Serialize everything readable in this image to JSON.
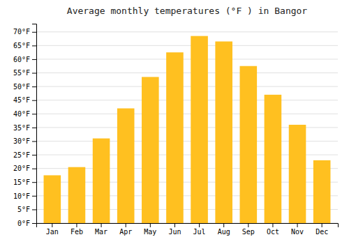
{
  "chart_data": {
    "type": "bar",
    "title": "Average monthly temperatures (°F ) in Bangor",
    "categories": [
      "Jan",
      "Feb",
      "Mar",
      "Apr",
      "May",
      "Jun",
      "Jul",
      "Aug",
      "Sep",
      "Oct",
      "Nov",
      "Dec"
    ],
    "values": [
      17.5,
      20.5,
      31.0,
      42.0,
      53.5,
      62.5,
      68.5,
      66.5,
      57.5,
      47.0,
      36.0,
      23.0
    ],
    "color": "#FFC020",
    "ylim": [
      0,
      73
    ],
    "yticks": [
      {
        "value": 0,
        "label": "0°F"
      },
      {
        "value": 5,
        "label": "5°F"
      },
      {
        "value": 10,
        "label": "10°F"
      },
      {
        "value": 15,
        "label": "15°F"
      },
      {
        "value": 20,
        "label": "20°F"
      },
      {
        "value": 25,
        "label": "25°F"
      },
      {
        "value": 30,
        "label": "30°F"
      },
      {
        "value": 35,
        "label": "35°F"
      },
      {
        "value": 40,
        "label": "40°F"
      },
      {
        "value": 45,
        "label": "45°F"
      },
      {
        "value": 50,
        "label": "50°F"
      },
      {
        "value": 55,
        "label": "55°F"
      },
      {
        "value": 60,
        "label": "60°F"
      },
      {
        "value": 65,
        "label": "65°F"
      },
      {
        "value": 70,
        "label": "70°F"
      }
    ],
    "grid": true
  }
}
